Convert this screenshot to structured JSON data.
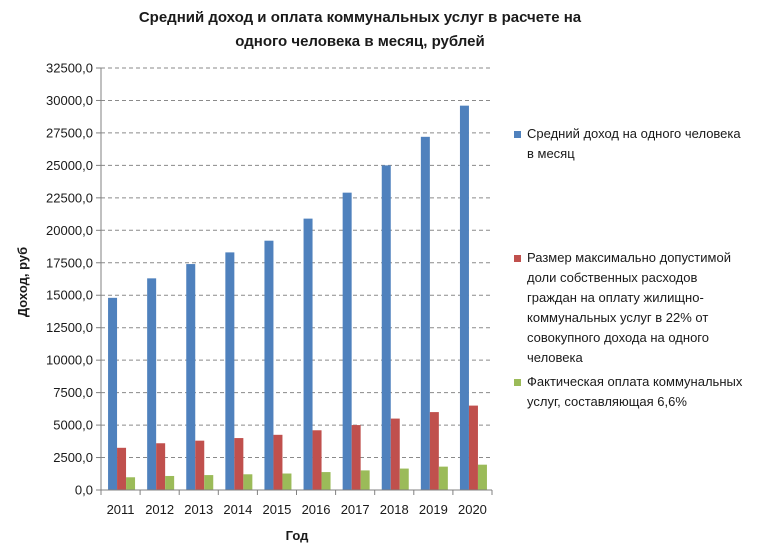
{
  "title_line1": "Средний доход и оплата коммунальных услуг в расчете на",
  "title_line2": "одного человека в месяц, рублей",
  "chart_data": {
    "type": "bar",
    "title": "Средний доход и оплата коммунальных услуг в расчете на одного человека в месяц, рублей",
    "xlabel": "Год",
    "ylabel": "Доход, руб",
    "categories": [
      "2011",
      "2012",
      "2013",
      "2014",
      "2015",
      "2016",
      "2017",
      "2018",
      "2019",
      "2020"
    ],
    "y_ticks": [
      "0,0",
      "2500,0",
      "5000,0",
      "7500,0",
      "10000,0",
      "12500,0",
      "15000,0",
      "17500,0",
      "20000,0",
      "22500,0",
      "25000,0",
      "27500,0",
      "30000,0",
      "32500,0"
    ],
    "ylim": [
      0,
      32500
    ],
    "grid": true,
    "grid_style": "dashed horizontal",
    "legend_position": "right",
    "series": [
      {
        "name": "Средний доход на одного человека в месяц",
        "legend_lines": [
          "Средний доход на одного человека",
          "в месяц"
        ],
        "color": "#4f81bd",
        "values": [
          14800,
          16300,
          17400,
          18300,
          19200,
          20900,
          22900,
          25000,
          27200,
          29600
        ]
      },
      {
        "name": "Размер максимально допустимой доли собственных расходов граждан на оплату жилищно-коммунальных услуг в 22% от совокупного дохода на одного человека",
        "legend_lines": [
          "Размер максимально допустимой",
          "доли собственных расходов",
          "граждан на оплату жилищно-",
          "коммунальных услуг в 22% от",
          "совокупного дохода на одного",
          "человека"
        ],
        "color": "#c0504d",
        "values": [
          3250,
          3600,
          3800,
          4000,
          4250,
          4600,
          5000,
          5500,
          6000,
          6500
        ]
      },
      {
        "name": "Фактическая оплата коммунальных услуг, составляющая 6,6%",
        "legend_lines": [
          "Фактическая оплата коммунальных",
          "услуг, составляющая 6,6%"
        ],
        "color": "#9bbb59",
        "values": [
          980,
          1080,
          1150,
          1210,
          1270,
          1380,
          1510,
          1650,
          1800,
          1950
        ]
      }
    ]
  }
}
